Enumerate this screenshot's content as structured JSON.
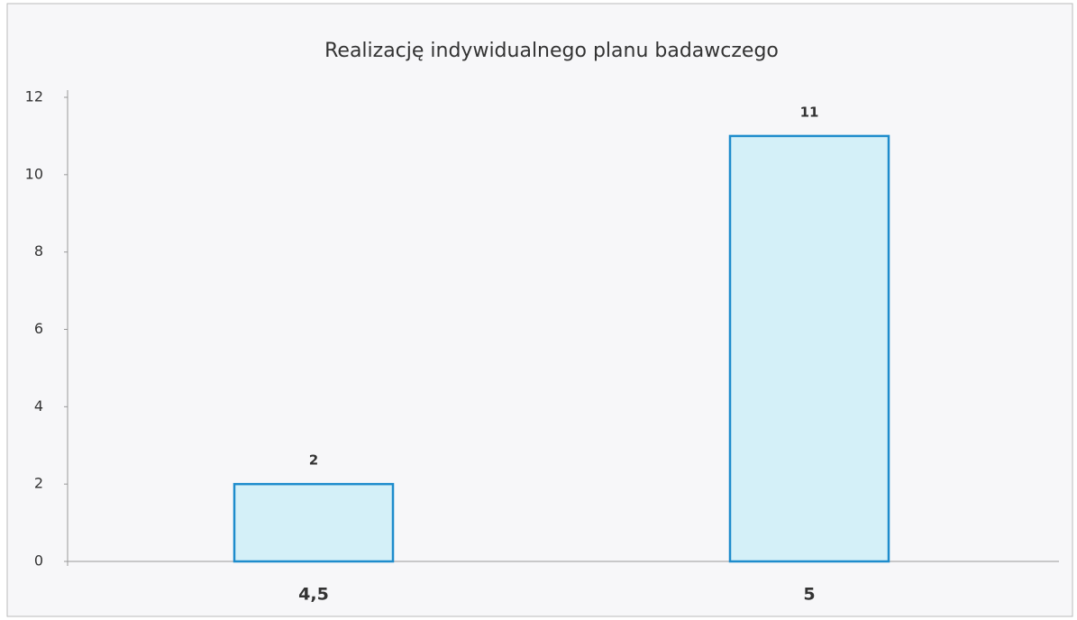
{
  "chart_data": {
    "type": "bar",
    "title": "Realizację indywidualnego planu badawczego",
    "categories": [
      "4,5",
      "5"
    ],
    "values": [
      2,
      11
    ],
    "color": "#d4f0f8",
    "edge_color": "#1e8ccc",
    "ylim": [
      0,
      12
    ],
    "yticks": [
      0,
      2,
      4,
      6,
      8,
      10,
      12
    ],
    "grid": false
  }
}
